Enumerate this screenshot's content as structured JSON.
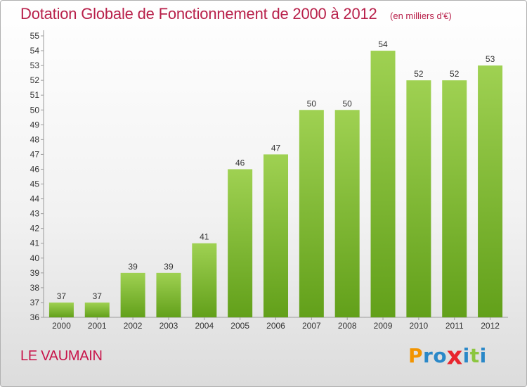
{
  "title": "Dotation Globale de Fonctionnement de 2000 à 2012",
  "subtitle": "(en milliers d'€)",
  "commune": "LE VAUMAIN",
  "logo": {
    "text": "Proxiti",
    "letters": [
      {
        "ch": "P",
        "color": "#f29400"
      },
      {
        "ch": "r",
        "color": "#2a88c8"
      },
      {
        "ch": "o",
        "color": "#2a88c8"
      },
      {
        "ch": "x",
        "color": "#e8262e"
      },
      {
        "ch": "i",
        "color": "#2a88c8"
      },
      {
        "ch": "t",
        "color": "#8cc63f"
      },
      {
        "ch": "i",
        "color": "#2a88c8"
      }
    ]
  },
  "chart_data": {
    "type": "bar",
    "categories": [
      "2000",
      "2001",
      "2002",
      "2003",
      "2004",
      "2005",
      "2006",
      "2007",
      "2008",
      "2009",
      "2010",
      "2011",
      "2012"
    ],
    "values": [
      37,
      37,
      39,
      39,
      41,
      46,
      47,
      50,
      50,
      54,
      52,
      52,
      53
    ],
    "title": "Dotation Globale de Fonctionnement de 2000 à 2012",
    "subtitle": "(en milliers d'€)",
    "xlabel": "",
    "ylabel": "",
    "ylim": [
      36,
      55
    ],
    "yticks": [
      36,
      37,
      38,
      39,
      40,
      41,
      42,
      43,
      44,
      45,
      46,
      47,
      48,
      49,
      50,
      51,
      52,
      53,
      54,
      55
    ],
    "grid": false,
    "bar_color": "#7cb82f",
    "data_labels": true
  }
}
